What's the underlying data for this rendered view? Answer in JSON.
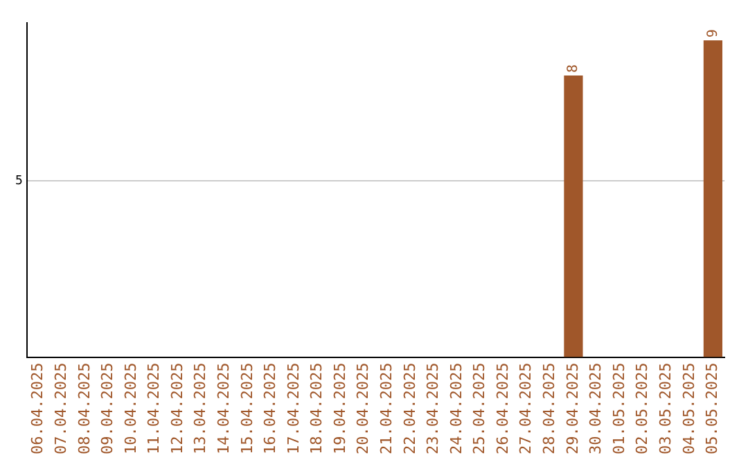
{
  "chart_data": {
    "type": "bar",
    "categories": [
      "06.04.2025",
      "07.04.2025",
      "08.04.2025",
      "09.04.2025",
      "10.04.2025",
      "11.04.2025",
      "12.04.2025",
      "13.04.2025",
      "14.04.2025",
      "15.04.2025",
      "16.04.2025",
      "17.04.2025",
      "18.04.2025",
      "19.04.2025",
      "20.04.2025",
      "21.04.2025",
      "22.04.2025",
      "23.04.2025",
      "24.04.2025",
      "25.04.2025",
      "26.04.2025",
      "27.04.2025",
      "28.04.2025",
      "29.04.2025",
      "30.04.2025",
      "01.05.2025",
      "02.05.2025",
      "03.05.2025",
      "04.05.2025",
      "05.05.2025"
    ],
    "values": [
      null,
      null,
      null,
      null,
      null,
      null,
      null,
      null,
      null,
      null,
      null,
      null,
      null,
      null,
      null,
      null,
      null,
      null,
      null,
      null,
      null,
      null,
      null,
      8,
      null,
      null,
      null,
      null,
      null,
      9
    ],
    "data_labels": true,
    "color": "#a0572a",
    "ylim": [
      0,
      9.5
    ],
    "yticks": [
      5
    ],
    "grid": "y",
    "legend": false
  }
}
